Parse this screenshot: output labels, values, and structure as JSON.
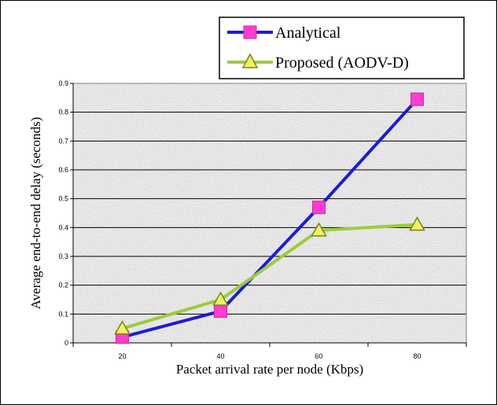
{
  "chart_data": {
    "type": "line",
    "title": "",
    "xlabel": "Packet arrival rate per node (Kbps)",
    "ylabel": "Average end-to-end delay (seconds)",
    "categories": [
      "20",
      "40",
      "60",
      "80"
    ],
    "ylim": [
      0,
      0.9
    ],
    "yticks": [
      "0",
      "0.1",
      "0.2",
      "0.3",
      "0.4",
      "0.5",
      "0.6",
      "0.7",
      "0.8",
      "0.9"
    ],
    "grid": "horizontal",
    "legend_position": "top-right",
    "series": [
      {
        "name": "Analytical",
        "values": [
          0.02,
          0.11,
          0.47,
          0.845
        ],
        "line_color": "#1c1cd6",
        "marker": "square",
        "marker_color": "#ff3ccf"
      },
      {
        "name": "Proposed (AODV-D)",
        "values": [
          0.05,
          0.15,
          0.39,
          0.41
        ],
        "line_color": "#9ccc3a",
        "marker": "triangle",
        "marker_color": "#f2f25a"
      }
    ]
  }
}
